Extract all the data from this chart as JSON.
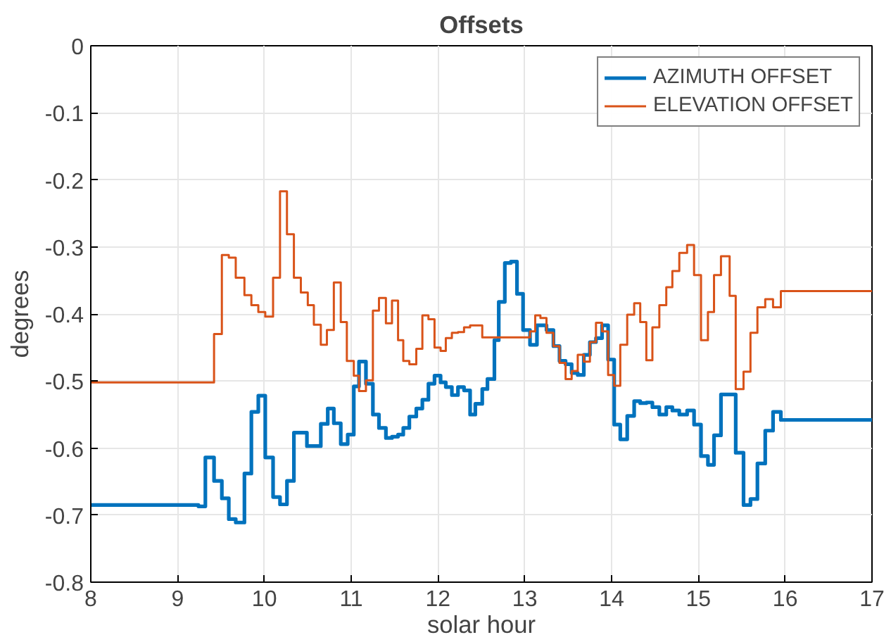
{
  "chart_data": {
    "type": "step",
    "title": "Offsets",
    "xlabel": "solar hour",
    "ylabel": "degrees",
    "xlim": [
      8,
      17
    ],
    "xticks": [
      8,
      9,
      10,
      11,
      12,
      13,
      14,
      15,
      16,
      17
    ],
    "ylim": [
      -0.8,
      0
    ],
    "yticks": [
      -0.8,
      -0.7,
      -0.6,
      -0.5,
      -0.4,
      -0.3,
      -0.2,
      -0.1,
      0
    ],
    "grid": true,
    "legend": "top right",
    "line_style": "solid",
    "marker": "none",
    "series": [
      {
        "name": "AZIMUTH OFFSET",
        "color": "#0072bd",
        "x": [
          8,
          9.24,
          9.32,
          9.42,
          9.51,
          9.59,
          9.67,
          9.77,
          9.85,
          9.93,
          10.01,
          10.1,
          10.18,
          10.26,
          10.34,
          10.49,
          10.65,
          10.73,
          10.8,
          10.88,
          10.96,
          11.03,
          11.09,
          11.17,
          11.25,
          11.32,
          11.4,
          11.47,
          11.54,
          11.6,
          11.67,
          11.75,
          11.82,
          11.89,
          11.96,
          12.03,
          12.09,
          12.16,
          12.23,
          12.3,
          12.37,
          12.43,
          12.51,
          12.57,
          12.65,
          12.7,
          12.77,
          12.84,
          12.91,
          12.98,
          13.06,
          13.14,
          13.25,
          13.33,
          13.4,
          13.47,
          13.54,
          13.61,
          13.68,
          13.75,
          13.82,
          13.89,
          13.96,
          14.03,
          14.1,
          14.18,
          14.26,
          14.33,
          14.4,
          14.47,
          14.55,
          14.63,
          14.7,
          14.78,
          14.87,
          14.95,
          15.03,
          15.11,
          15.18,
          15.26,
          15.43,
          15.52,
          15.6,
          15.68,
          15.77,
          15.86,
          15.95,
          17
        ],
        "values": [
          -0.685,
          -0.687,
          -0.614,
          -0.649,
          -0.675,
          -0.706,
          -0.711,
          -0.638,
          -0.546,
          -0.522,
          -0.614,
          -0.673,
          -0.684,
          -0.649,
          -0.577,
          -0.597,
          -0.564,
          -0.541,
          -0.563,
          -0.594,
          -0.58,
          -0.508,
          -0.471,
          -0.504,
          -0.55,
          -0.57,
          -0.585,
          -0.583,
          -0.58,
          -0.57,
          -0.553,
          -0.541,
          -0.528,
          -0.504,
          -0.492,
          -0.502,
          -0.509,
          -0.521,
          -0.509,
          -0.514,
          -0.55,
          -0.534,
          -0.512,
          -0.497,
          -0.439,
          -0.382,
          -0.324,
          -0.322,
          -0.37,
          -0.424,
          -0.446,
          -0.417,
          -0.424,
          -0.448,
          -0.47,
          -0.475,
          -0.488,
          -0.491,
          -0.461,
          -0.442,
          -0.436,
          -0.417,
          -0.468,
          -0.565,
          -0.587,
          -0.552,
          -0.53,
          -0.533,
          -0.532,
          -0.539,
          -0.55,
          -0.539,
          -0.544,
          -0.55,
          -0.544,
          -0.565,
          -0.612,
          -0.625,
          -0.581,
          -0.52,
          -0.607,
          -0.685,
          -0.676,
          -0.623,
          -0.574,
          -0.546,
          -0.558,
          -0.558
        ]
      },
      {
        "name": "ELEVATION OFFSET",
        "color": "#d95319",
        "x": [
          8,
          9.42,
          9.51,
          9.59,
          9.67,
          9.77,
          9.85,
          9.93,
          10.01,
          10.1,
          10.18,
          10.26,
          10.34,
          10.42,
          10.5,
          10.57,
          10.65,
          10.72,
          10.8,
          10.88,
          10.95,
          11.03,
          11.09,
          11.17,
          11.25,
          11.32,
          11.4,
          11.47,
          11.54,
          11.6,
          11.67,
          11.75,
          11.82,
          11.89,
          11.96,
          12.03,
          12.09,
          12.16,
          12.23,
          12.3,
          12.37,
          12.51,
          13.06,
          13.12,
          13.18,
          13.25,
          13.33,
          13.4,
          13.47,
          13.54,
          13.61,
          13.68,
          13.75,
          13.82,
          13.89,
          13.96,
          14.03,
          14.1,
          14.18,
          14.26,
          14.33,
          14.4,
          14.47,
          14.55,
          14.63,
          14.7,
          14.78,
          14.87,
          14.95,
          15.03,
          15.11,
          15.18,
          15.26,
          15.36,
          15.43,
          15.52,
          15.6,
          15.68,
          15.77,
          15.86,
          15.95,
          17
        ],
        "values": [
          -0.502,
          -0.43,
          -0.312,
          -0.316,
          -0.346,
          -0.372,
          -0.387,
          -0.397,
          -0.404,
          -0.346,
          -0.217,
          -0.281,
          -0.346,
          -0.368,
          -0.387,
          -0.416,
          -0.446,
          -0.424,
          -0.353,
          -0.412,
          -0.47,
          -0.492,
          -0.515,
          -0.499,
          -0.395,
          -0.376,
          -0.414,
          -0.38,
          -0.439,
          -0.47,
          -0.475,
          -0.452,
          -0.402,
          -0.408,
          -0.45,
          -0.455,
          -0.436,
          -0.428,
          -0.427,
          -0.42,
          -0.417,
          -0.435,
          -0.426,
          -0.402,
          -0.406,
          -0.428,
          -0.448,
          -0.473,
          -0.497,
          -0.485,
          -0.461,
          -0.471,
          -0.442,
          -0.413,
          -0.426,
          -0.491,
          -0.507,
          -0.446,
          -0.401,
          -0.384,
          -0.412,
          -0.469,
          -0.42,
          -0.387,
          -0.36,
          -0.336,
          -0.309,
          -0.297,
          -0.342,
          -0.439,
          -0.397,
          -0.342,
          -0.314,
          -0.373,
          -0.512,
          -0.486,
          -0.428,
          -0.39,
          -0.378,
          -0.39,
          -0.366,
          -0.366
        ]
      }
    ]
  }
}
